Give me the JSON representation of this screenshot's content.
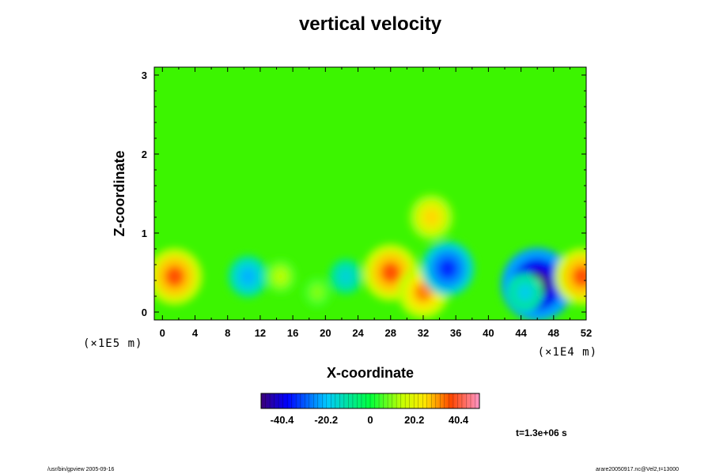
{
  "chart_data": {
    "type": "heatmap",
    "title": "vertical velocity",
    "xlabel": "X-coordinate",
    "ylabel": "Z-coordinate",
    "x_scale_note": "(×1E4 m)",
    "y_scale_note": "(×1E5 m)",
    "xlim": [
      -1,
      52
    ],
    "ylim": [
      -0.1,
      3.1
    ],
    "x_ticks": [
      0,
      4,
      8,
      12,
      16,
      20,
      24,
      28,
      32,
      36,
      40,
      44,
      48,
      52
    ],
    "y_ticks": [
      0,
      1,
      2,
      3
    ],
    "colorbar": {
      "range": [
        -50,
        50
      ],
      "tick_values": [
        -40.4,
        -20.2,
        0,
        20.2,
        40.4
      ],
      "tick_labels": [
        "-40.4",
        "-20.2",
        "0",
        "20.2",
        "40.4"
      ]
    },
    "features": [
      {
        "x": 1.5,
        "z": 0.45,
        "value": 36
      },
      {
        "x": 10.5,
        "z": 0.45,
        "value": -22
      },
      {
        "x": 14.5,
        "z": 0.45,
        "value": 14
      },
      {
        "x": 22.5,
        "z": 0.45,
        "value": -16
      },
      {
        "x": 28,
        "z": 0.5,
        "value": 36
      },
      {
        "x": 32,
        "z": 0.25,
        "value": 32
      },
      {
        "x": 35,
        "z": 0.55,
        "value": -34
      },
      {
        "x": 33,
        "z": 1.2,
        "value": 26
      },
      {
        "x": 46,
        "z": 0.35,
        "value": -52
      },
      {
        "x": 51.5,
        "z": 0.45,
        "value": 36
      },
      {
        "x": 19,
        "z": 0.25,
        "value": 10
      },
      {
        "x": 44.5,
        "z": 0.25,
        "value": -18
      }
    ]
  },
  "annotations": {
    "time": "t=1.3e+06 s",
    "footer_left": "/usr/bin/gpview 2005-09-16",
    "footer_right": "arare20050917.nc@Vel2,t=13000"
  }
}
